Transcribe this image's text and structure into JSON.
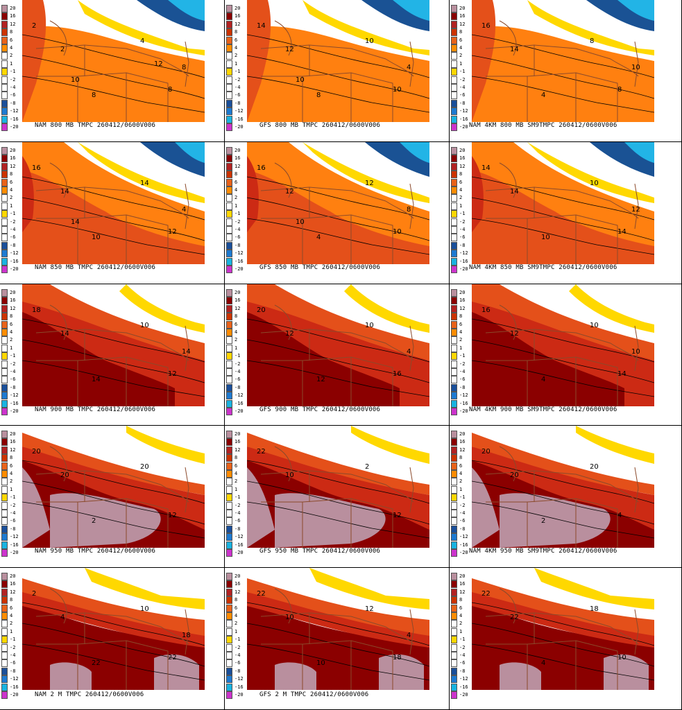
{
  "legend": {
    "labels": [
      "20",
      "16",
      "12",
      "8",
      "6",
      "4",
      "2",
      "1",
      "-1",
      "-2",
      "-4",
      "-6",
      "-8",
      "-12",
      "-16",
      "-20"
    ],
    "colors": [
      "#b98f9e",
      "#8b0000",
      "#b22222",
      "#cc3300",
      "#e8621a",
      "#ff8c00",
      "#ffffff",
      "#ffffff",
      "#ffd700",
      "#ffffff",
      "#ffffff",
      "#ffffff",
      "#1a4f9a",
      "#1e7ad1",
      "#19b3e0",
      "#cc33cc"
    ]
  },
  "palette": {
    "warm20": "#b98f9e",
    "t16": "#8b0000",
    "t12": "#cc2a14",
    "t8": "#e4501a",
    "t6": "#ff8010",
    "yellow": "#ffd800",
    "blue_dark": "#1a5294",
    "blue_light": "#22b4e6",
    "state_lines": "#8b4a2b"
  },
  "panels": [
    {
      "caption": "NAM 800 MB TMPC 260412/0600V006",
      "level": "800",
      "labels": [
        "2",
        "2",
        "4",
        "8",
        "8",
        "8",
        "10",
        "12"
      ]
    },
    {
      "caption": "GFS 800 MB TMPC 260412/0600V006",
      "level": "800",
      "labels": [
        "14",
        "12",
        "10",
        "10",
        "8",
        "4",
        "10"
      ]
    },
    {
      "caption": "NAM 4KM 800 MB SM9TMPC 260412/0600V006",
      "level": "800",
      "labels": [
        "16",
        "14",
        "8",
        "8",
        "4",
        "10"
      ]
    },
    {
      "caption": "NAM 850 MB TMPC 260412/0600V006",
      "level": "850",
      "labels": [
        "16",
        "14",
        "14",
        "12",
        "10",
        "4",
        "14"
      ]
    },
    {
      "caption": "GFS 850 MB TMPC 260412/0600V006",
      "level": "850",
      "labels": [
        "16",
        "12",
        "12",
        "10",
        "4",
        "8",
        "10"
      ]
    },
    {
      "caption": "NAM 4KM 850 MB SM9TMPC 260412/0600V006",
      "level": "850",
      "labels": [
        "14",
        "14",
        "10",
        "14",
        "10",
        "12"
      ]
    },
    {
      "caption": "NAM 900 MB TMPC 260412/0600V006",
      "level": "900",
      "labels": [
        "18",
        "14",
        "10",
        "12",
        "14",
        "14"
      ]
    },
    {
      "caption": "GFS 900 MB TMPC 260412/0600V006",
      "level": "900",
      "labels": [
        "20",
        "12",
        "10",
        "16",
        "12",
        "4"
      ]
    },
    {
      "caption": "NAM 4KM 900 MB SM9TMPC 260412/0600V006",
      "level": "900",
      "labels": [
        "16",
        "12",
        "10",
        "14",
        "4",
        "10"
      ]
    },
    {
      "caption": "NAM 950 MB TMPC 260412/0600V006",
      "level": "950",
      "labels": [
        "20",
        "20",
        "20",
        "12",
        "2"
      ]
    },
    {
      "caption": "GFS 950 MB TMPC 260412/0600V006",
      "level": "950",
      "labels": [
        "22",
        "10",
        "2",
        "12"
      ]
    },
    {
      "caption": "NAM 4KM 950 MB SM9TMPC 260412/0600V006",
      "level": "950",
      "labels": [
        "20",
        "20",
        "20",
        "4",
        "2"
      ]
    },
    {
      "caption": "NAM 2 M TMPC 260412/0600V006",
      "level": "2m",
      "labels": [
        "2",
        "4",
        "10",
        "22",
        "22",
        "18"
      ]
    },
    {
      "caption": "GFS 2 M TMPC 260412/0600V006",
      "level": "2m",
      "labels": [
        "22",
        "10",
        "12",
        "18",
        "10",
        "4"
      ]
    },
    {
      "caption": "",
      "level": "2m",
      "labels": [
        "22",
        "22",
        "18",
        "10",
        "4"
      ]
    }
  ]
}
